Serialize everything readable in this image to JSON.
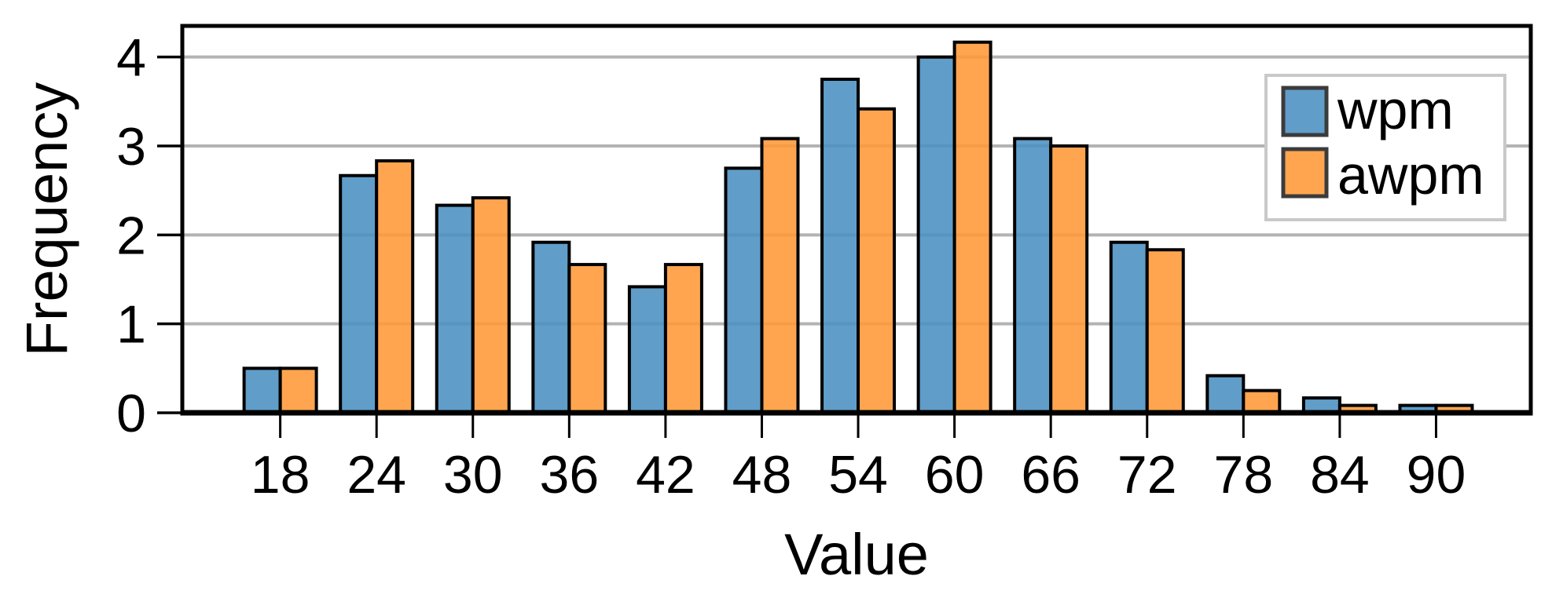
{
  "figure": {
    "background": "#ffffff"
  },
  "chart_data": {
    "type": "bar",
    "title": "",
    "xlabel": "Value",
    "ylabel": "Frequency",
    "categories": [
      18,
      24,
      30,
      36,
      42,
      48,
      54,
      60,
      66,
      72,
      78,
      84,
      90
    ],
    "series": [
      {
        "name": "wpm",
        "color": "#4A90C2",
        "values": [
          0.5,
          2.667,
          2.333,
          1.917,
          1.417,
          2.75,
          3.75,
          4.0,
          3.083,
          1.917,
          0.417,
          0.167,
          0.083
        ]
      },
      {
        "name": "awpm",
        "color": "#FF9838",
        "values": [
          0.5,
          2.833,
          2.417,
          1.667,
          1.667,
          3.083,
          3.417,
          4.167,
          3.0,
          1.833,
          0.25,
          0.083,
          0.083
        ]
      }
    ],
    "xticks": [
      18,
      24,
      30,
      36,
      42,
      48,
      54,
      60,
      66,
      72,
      78,
      84,
      90
    ],
    "yticks": [
      0,
      1,
      2,
      3,
      4
    ],
    "xlim": [
      11.9,
      95.9
    ],
    "ylim": [
      0,
      4.35
    ],
    "grid": true,
    "legend_position": "top-right",
    "colors": {
      "bar_edge": "#000000",
      "gridline": "#b3b3b3",
      "spine": "#000000",
      "legend_border": "#c9c9c9",
      "legend_background": "#ffffff",
      "swatch_border": "#3b3b3b",
      "text": "#000000"
    }
  }
}
